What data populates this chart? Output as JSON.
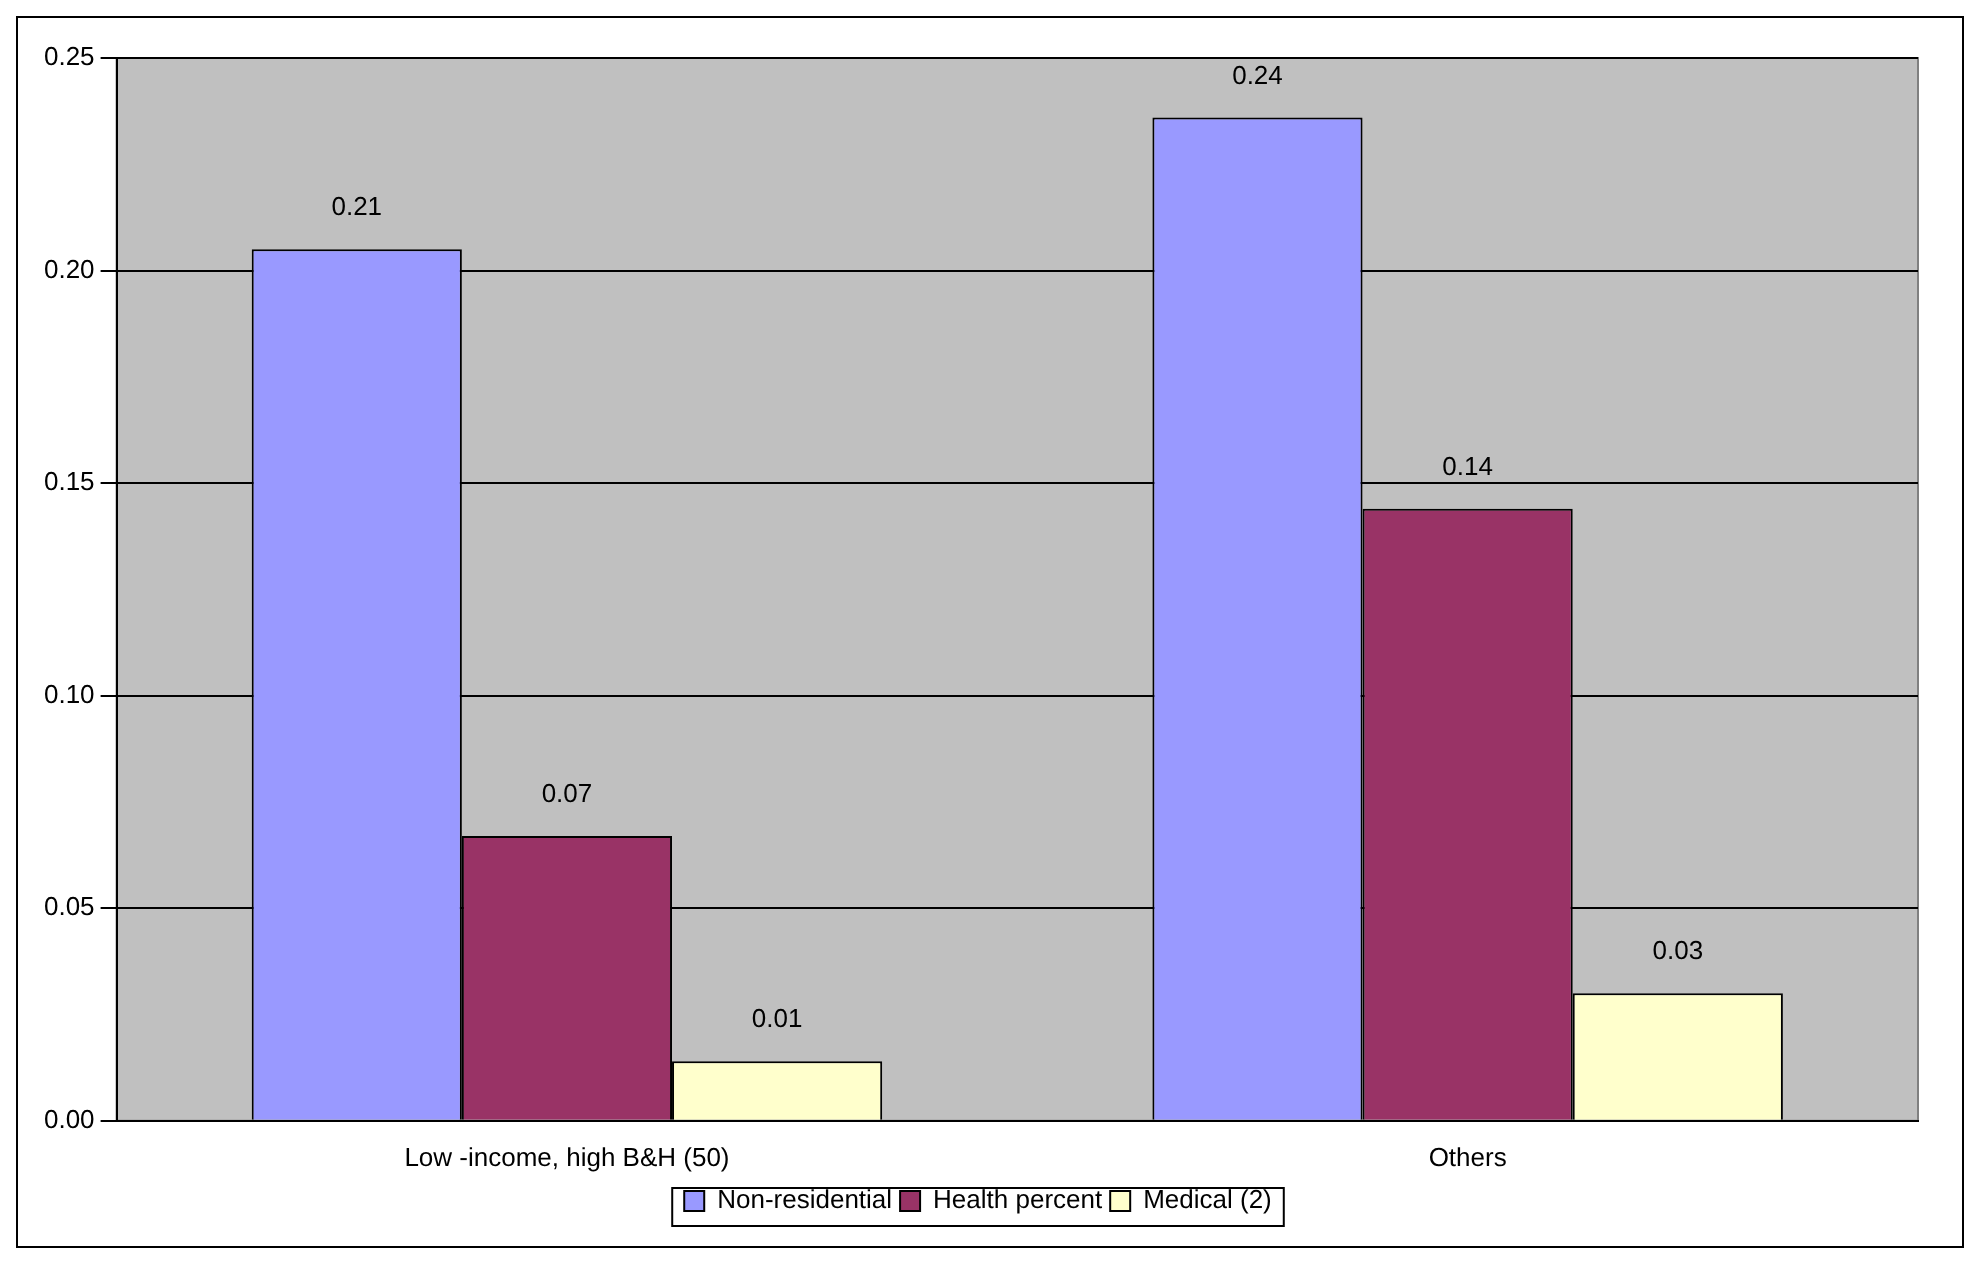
{
  "chart_data": {
    "type": "bar",
    "categories": [
      "Low -income, high B&H (50)",
      "Others"
    ],
    "series": [
      {
        "name": "Non-residential",
        "color": "#9999ff",
        "values": [
          0.205,
          0.236
        ],
        "value_labels": [
          "0.21",
          "0.24"
        ]
      },
      {
        "name": "Health percent",
        "color": "#993366",
        "values": [
          0.067,
          0.144
        ],
        "value_labels": [
          "0.07",
          "0.14"
        ]
      },
      {
        "name": "Medical (2)",
        "color": "#ffffcc",
        "values": [
          0.014,
          0.03
        ],
        "value_labels": [
          "0.01",
          "0.03"
        ]
      }
    ],
    "ylim": [
      0,
      0.25
    ],
    "yticks": [
      {
        "value": 0,
        "label": "0.00"
      },
      {
        "value": 0.05,
        "label": "0.05"
      },
      {
        "value": 0.1,
        "label": "0.10"
      },
      {
        "value": 0.15,
        "label": "0.15"
      },
      {
        "value": 0.2,
        "label": "0.20"
      },
      {
        "value": 0.25,
        "label": "0.25"
      }
    ],
    "grid": "y",
    "legend": "bottom"
  }
}
